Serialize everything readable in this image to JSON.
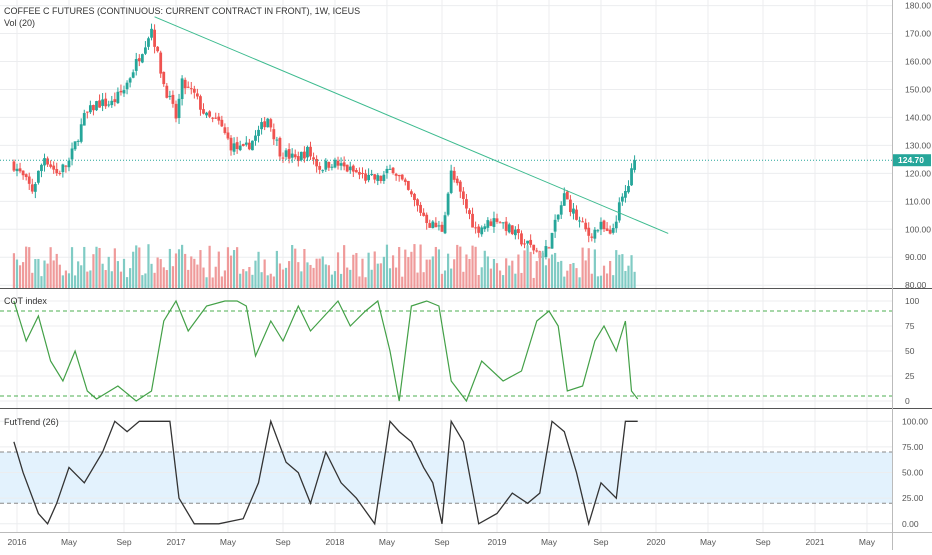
{
  "header": {
    "title": "COFFEE C FUTURES (CONTINUOUS: CURRENT CONTRACT IN FRONT), 1W, ICEUS",
    "vol_label": "Vol (20)",
    "cot_label": "COT index",
    "futtrend_label": "FutTrend (26)"
  },
  "colors": {
    "up": "#26a69a",
    "down": "#ef5350",
    "vol_up": "#80cbc4",
    "vol_down": "#ef9a9a",
    "trendline": "#3dbb8f",
    "cot_line": "#43a047",
    "cot_band": "#4caf50",
    "futtrend_line": "#333333",
    "futtrend_fill": "#e3f2fd",
    "last_price": "#26a69a",
    "grid": "#ecedef"
  },
  "chart_data": [
    {
      "type": "candlestick",
      "title": "COFFEE C FUTURES (CONTINUOUS: CURRENT CONTRACT IN FRONT), 1W, ICEUS",
      "y_ticks": [
        "80.00",
        "90.00",
        "100.00",
        "110.00",
        "120.00",
        "130.00",
        "140.00",
        "150.00",
        "160.00",
        "170.00",
        "180.00"
      ],
      "ylim": [
        79,
        182
      ],
      "last_price": "124.70",
      "anchors": [
        [
          "2015-12-28",
          123
        ],
        [
          "2016-02-08",
          114
        ],
        [
          "2016-03-07",
          126
        ],
        [
          "2016-04-04",
          120
        ],
        [
          "2016-05-02",
          124
        ],
        [
          "2016-06-06",
          140
        ],
        [
          "2016-07-04",
          145
        ],
        [
          "2016-08-08",
          145
        ],
        [
          "2016-09-05",
          150
        ],
        [
          "2016-10-10",
          162
        ],
        [
          "2016-11-07",
          172
        ],
        [
          "2016-12-05",
          152
        ],
        [
          "2017-01-02",
          140
        ],
        [
          "2017-01-16",
          152
        ],
        [
          "2017-02-13",
          148
        ],
        [
          "2017-03-13",
          140
        ],
        [
          "2017-04-10",
          138
        ],
        [
          "2017-05-08",
          130
        ],
        [
          "2017-06-05",
          128
        ],
        [
          "2017-07-03",
          133
        ],
        [
          "2017-07-31",
          140
        ],
        [
          "2017-08-28",
          128
        ],
        [
          "2017-10-02",
          125
        ],
        [
          "2017-10-30",
          128
        ],
        [
          "2017-11-27",
          122
        ],
        [
          "2017-12-25",
          124
        ],
        [
          "2018-01-22",
          122
        ],
        [
          "2018-02-19",
          120
        ],
        [
          "2018-03-19",
          118
        ],
        [
          "2018-04-16",
          118
        ],
        [
          "2018-05-14",
          122
        ],
        [
          "2018-06-11",
          115
        ],
        [
          "2018-07-09",
          108
        ],
        [
          "2018-08-06",
          102
        ],
        [
          "2018-09-03",
          100
        ],
        [
          "2018-09-24",
          120
        ],
        [
          "2018-10-22",
          110
        ],
        [
          "2018-11-19",
          100
        ],
        [
          "2018-12-17",
          102
        ],
        [
          "2019-01-07",
          104
        ],
        [
          "2019-02-04",
          100
        ],
        [
          "2019-03-04",
          96
        ],
        [
          "2019-04-01",
          93
        ],
        [
          "2019-04-22",
          90
        ],
        [
          "2019-05-13",
          98
        ],
        [
          "2019-06-10",
          112
        ],
        [
          "2019-07-08",
          104
        ],
        [
          "2019-08-05",
          98
        ],
        [
          "2019-09-02",
          101
        ],
        [
          "2019-09-23",
          97
        ],
        [
          "2019-10-14",
          108
        ],
        [
          "2019-11-04",
          116
        ],
        [
          "2019-11-18",
          124.7
        ]
      ]
    },
    {
      "type": "line",
      "title": "COT index",
      "y_ticks": [
        "0",
        "25",
        "50",
        "75",
        "100"
      ],
      "ylim": [
        -7,
        112
      ],
      "bands": [
        5,
        90
      ],
      "anchors": [
        [
          "2015-12-28",
          100
        ],
        [
          "2016-01-25",
          60
        ],
        [
          "2016-02-22",
          85
        ],
        [
          "2016-03-21",
          40
        ],
        [
          "2016-04-18",
          20
        ],
        [
          "2016-05-16",
          50
        ],
        [
          "2016-06-13",
          10
        ],
        [
          "2016-07-04",
          2
        ],
        [
          "2016-08-22",
          15
        ],
        [
          "2016-10-03",
          0
        ],
        [
          "2016-11-07",
          10
        ],
        [
          "2016-12-05",
          80
        ],
        [
          "2017-01-02",
          100
        ],
        [
          "2017-01-30",
          70
        ],
        [
          "2017-03-13",
          95
        ],
        [
          "2017-04-24",
          100
        ],
        [
          "2017-05-22",
          100
        ],
        [
          "2017-06-12",
          95
        ],
        [
          "2017-07-03",
          45
        ],
        [
          "2017-08-07",
          80
        ],
        [
          "2017-09-04",
          60
        ],
        [
          "2017-10-09",
          95
        ],
        [
          "2017-11-06",
          70
        ],
        [
          "2017-12-18",
          90
        ],
        [
          "2018-01-08",
          100
        ],
        [
          "2018-02-05",
          75
        ],
        [
          "2018-03-12",
          90
        ],
        [
          "2018-04-09",
          100
        ],
        [
          "2018-05-07",
          50
        ],
        [
          "2018-05-28",
          0
        ],
        [
          "2018-06-25",
          95
        ],
        [
          "2018-07-30",
          100
        ],
        [
          "2018-08-27",
          95
        ],
        [
          "2018-09-24",
          20
        ],
        [
          "2018-10-29",
          0
        ],
        [
          "2018-12-03",
          40
        ],
        [
          "2019-01-21",
          20
        ],
        [
          "2019-03-04",
          30
        ],
        [
          "2019-04-08",
          80
        ],
        [
          "2019-05-06",
          90
        ],
        [
          "2019-05-27",
          75
        ],
        [
          "2019-06-17",
          10
        ],
        [
          "2019-07-22",
          15
        ],
        [
          "2019-08-19",
          60
        ],
        [
          "2019-09-09",
          75
        ],
        [
          "2019-10-07",
          50
        ],
        [
          "2019-10-28",
          80
        ],
        [
          "2019-11-11",
          10
        ],
        [
          "2019-11-25",
          2
        ]
      ]
    },
    {
      "type": "line",
      "title": "FutTrend (26)",
      "y_ticks": [
        "0.00",
        "25.00",
        "50.00",
        "75.00",
        "100.00"
      ],
      "ylim": [
        -8,
        112
      ],
      "band": [
        20,
        70
      ],
      "anchors": [
        [
          "2015-12-28",
          80
        ],
        [
          "2016-01-18",
          50
        ],
        [
          "2016-02-22",
          10
        ],
        [
          "2016-03-14",
          0
        ],
        [
          "2016-04-04",
          20
        ],
        [
          "2016-05-02",
          55
        ],
        [
          "2016-06-06",
          40
        ],
        [
          "2016-07-18",
          70
        ],
        [
          "2016-08-15",
          100
        ],
        [
          "2016-09-12",
          90
        ],
        [
          "2016-10-10",
          100
        ],
        [
          "2016-11-07",
          100
        ],
        [
          "2016-12-19",
          100
        ],
        [
          "2017-01-09",
          25
        ],
        [
          "2017-02-13",
          0
        ],
        [
          "2017-04-10",
          0
        ],
        [
          "2017-06-05",
          5
        ],
        [
          "2017-07-10",
          40
        ],
        [
          "2017-08-07",
          100
        ],
        [
          "2017-09-11",
          60
        ],
        [
          "2017-10-09",
          50
        ],
        [
          "2017-11-06",
          20
        ],
        [
          "2017-12-11",
          70
        ],
        [
          "2018-01-15",
          40
        ],
        [
          "2018-02-19",
          25
        ],
        [
          "2018-04-02",
          0
        ],
        [
          "2018-05-07",
          100
        ],
        [
          "2018-05-28",
          90
        ],
        [
          "2018-06-25",
          80
        ],
        [
          "2018-07-23",
          55
        ],
        [
          "2018-08-13",
          40
        ],
        [
          "2018-09-03",
          0
        ],
        [
          "2018-09-24",
          100
        ],
        [
          "2018-10-22",
          80
        ],
        [
          "2018-11-26",
          0
        ],
        [
          "2019-01-07",
          10
        ],
        [
          "2019-02-11",
          30
        ],
        [
          "2019-03-18",
          20
        ],
        [
          "2019-04-15",
          30
        ],
        [
          "2019-05-13",
          100
        ],
        [
          "2019-06-10",
          90
        ],
        [
          "2019-07-08",
          50
        ],
        [
          "2019-08-05",
          0
        ],
        [
          "2019-09-02",
          40
        ],
        [
          "2019-10-07",
          25
        ],
        [
          "2019-10-28",
          100
        ],
        [
          "2019-11-25",
          100
        ]
      ]
    }
  ],
  "x_axis": {
    "labels": [
      {
        "text": "2016",
        "date": "2016-01-04"
      },
      {
        "text": "May",
        "date": "2016-05-02"
      },
      {
        "text": "Sep",
        "date": "2016-09-05"
      },
      {
        "text": "2017",
        "date": "2017-01-02"
      },
      {
        "text": "May",
        "date": "2017-05-01"
      },
      {
        "text": "Sep",
        "date": "2017-09-04"
      },
      {
        "text": "2018",
        "date": "2018-01-01"
      },
      {
        "text": "May",
        "date": "2018-04-30"
      },
      {
        "text": "Sep",
        "date": "2018-09-03"
      },
      {
        "text": "2019",
        "date": "2019-01-07"
      },
      {
        "text": "May",
        "date": "2019-05-06"
      },
      {
        "text": "Sep",
        "date": "2019-09-02"
      },
      {
        "text": "2020",
        "date": "2020-01-06"
      },
      {
        "text": "May",
        "date": "2020-05-04"
      },
      {
        "text": "Sep",
        "date": "2020-09-07"
      },
      {
        "text": "2021",
        "date": "2021-01-04"
      },
      {
        "text": "May",
        "date": "2021-05-03"
      }
    ]
  },
  "trendline": {
    "from": [
      "2016-11-14",
      176
    ],
    "to": [
      "2020-02-03",
      98.5
    ]
  }
}
